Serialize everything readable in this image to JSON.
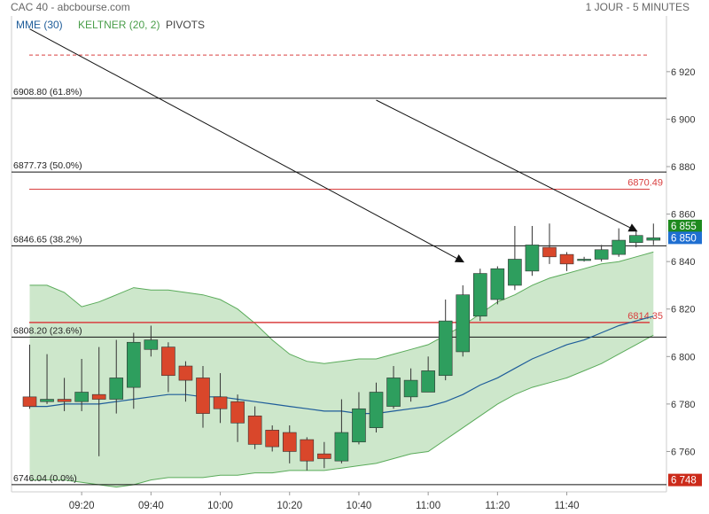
{
  "header": {
    "title": "CAC 40 - abcbourse.com",
    "timeframe": "1 JOUR - 5 MINUTES"
  },
  "indicators": {
    "mme": "MME (30)",
    "keltner": "KELTNER (20, 2)",
    "pivots": "PIVOTS"
  },
  "colors": {
    "up": "#2e9e5e",
    "down": "#d9472b",
    "mme": "#1f5d9a",
    "keltner_line": "#5aab5a",
    "keltner_fill": "#c4e3c2",
    "pivot": "#d94040",
    "fib": "#111111",
    "badge_green": "#1e8a1e",
    "badge_blue": "#1f6fd1",
    "badge_dark": "#cc2a1a"
  },
  "chart_data": {
    "type": "candlestick",
    "ylim": [
      6743,
      6936
    ],
    "y_ticks": [
      "6 760",
      "6 780",
      "6 800",
      "6 820",
      "6 840",
      "6 860",
      "6 880",
      "6 900",
      "6 920"
    ],
    "x_ticks": [
      "09:20",
      "09:40",
      "10:00",
      "10:20",
      "10:40",
      "11:00",
      "11:20",
      "11:40"
    ],
    "candles": [
      {
        "t": "09:05",
        "o": 6783,
        "h": 6805,
        "l": 6778,
        "c": 6779
      },
      {
        "t": "09:10",
        "o": 6781,
        "h": 6801,
        "l": 6780,
        "c": 6782
      },
      {
        "t": "09:15",
        "o": 6782,
        "h": 6791,
        "l": 6777,
        "c": 6781
      },
      {
        "t": "09:20",
        "o": 6781,
        "h": 6799,
        "l": 6777,
        "c": 6785
      },
      {
        "t": "09:25",
        "o": 6784,
        "h": 6804,
        "l": 6758,
        "c": 6782
      },
      {
        "t": "09:30",
        "o": 6782,
        "h": 6807,
        "l": 6776,
        "c": 6791
      },
      {
        "t": "09:35",
        "o": 6787,
        "h": 6810,
        "l": 6778,
        "c": 6806
      },
      {
        "t": "09:40",
        "o": 6803,
        "h": 6813,
        "l": 6800,
        "c": 6807
      },
      {
        "t": "09:45",
        "o": 6804,
        "h": 6806,
        "l": 6785,
        "c": 6792
      },
      {
        "t": "09:50",
        "o": 6796,
        "h": 6798,
        "l": 6781,
        "c": 6790
      },
      {
        "t": "09:55",
        "o": 6791,
        "h": 6796,
        "l": 6770,
        "c": 6776
      },
      {
        "t": "10:00",
        "o": 6783,
        "h": 6793,
        "l": 6772,
        "c": 6778
      },
      {
        "t": "10:05",
        "o": 6781,
        "h": 6784,
        "l": 6764,
        "c": 6772
      },
      {
        "t": "10:10",
        "o": 6775,
        "h": 6779,
        "l": 6761,
        "c": 6763
      },
      {
        "t": "10:15",
        "o": 6769,
        "h": 6771,
        "l": 6760,
        "c": 6762
      },
      {
        "t": "10:20",
        "o": 6768,
        "h": 6771,
        "l": 6755,
        "c": 6760
      },
      {
        "t": "10:25",
        "o": 6765,
        "h": 6766,
        "l": 6752,
        "c": 6756
      },
      {
        "t": "10:30",
        "o": 6759,
        "h": 6764,
        "l": 6753,
        "c": 6757
      },
      {
        "t": "10:35",
        "o": 6756,
        "h": 6782,
        "l": 6755,
        "c": 6768
      },
      {
        "t": "10:40",
        "o": 6764,
        "h": 6785,
        "l": 6763,
        "c": 6778
      },
      {
        "t": "10:45",
        "o": 6770,
        "h": 6789,
        "l": 6768,
        "c": 6785
      },
      {
        "t": "10:50",
        "o": 6779,
        "h": 6796,
        "l": 6778,
        "c": 6791
      },
      {
        "t": "10:55",
        "o": 6783,
        "h": 6795,
        "l": 6781,
        "c": 6790
      },
      {
        "t": "11:00",
        "o": 6785,
        "h": 6800,
        "l": 6785,
        "c": 6794
      },
      {
        "t": "11:05",
        "o": 6792,
        "h": 6824,
        "l": 6790,
        "c": 6815
      },
      {
        "t": "11:10",
        "o": 6802,
        "h": 6830,
        "l": 6800,
        "c": 6826
      },
      {
        "t": "11:15",
        "o": 6817,
        "h": 6837,
        "l": 6815,
        "c": 6835
      },
      {
        "t": "11:20",
        "o": 6824,
        "h": 6838,
        "l": 6822,
        "c": 6837
      },
      {
        "t": "11:25",
        "o": 6830,
        "h": 6855,
        "l": 6828,
        "c": 6841
      },
      {
        "t": "11:30",
        "o": 6836,
        "h": 6855,
        "l": 6834,
        "c": 6847
      },
      {
        "t": "11:35",
        "o": 6846,
        "h": 6856,
        "l": 6839,
        "c": 6842
      },
      {
        "t": "11:40",
        "o": 6843,
        "h": 6844,
        "l": 6836,
        "c": 6839
      },
      {
        "t": "11:45",
        "o": 6841,
        "h": 6842,
        "l": 6840,
        "c": 6841
      },
      {
        "t": "11:50",
        "o": 6841,
        "h": 6847,
        "l": 6840,
        "c": 6845
      },
      {
        "t": "11:55",
        "o": 6843,
        "h": 6854,
        "l": 6842,
        "c": 6849
      },
      {
        "t": "12:00",
        "o": 6848,
        "h": 6853,
        "l": 6846,
        "c": 6851
      },
      {
        "t": "12:05",
        "o": 6849,
        "h": 6856,
        "l": 6847,
        "c": 6850
      }
    ],
    "mme": [
      6779,
      6779,
      6780,
      6780,
      6780,
      6781,
      6782,
      6783,
      6784,
      6784,
      6783,
      6783,
      6782,
      6781,
      6780,
      6779,
      6778,
      6777,
      6777,
      6776,
      6776,
      6777,
      6778,
      6779,
      6781,
      6784,
      6788,
      6791,
      6795,
      6799,
      6802,
      6805,
      6807,
      6810,
      6813,
      6815,
      6817
    ],
    "keltner_upper": [
      6830,
      6830,
      6827,
      6821,
      6823,
      6826,
      6829,
      6828,
      6828,
      6827,
      6826,
      6824,
      6820,
      6814,
      6807,
      6801,
      6798,
      6797,
      6798,
      6799,
      6799,
      6801,
      6803,
      6805,
      6809,
      6813,
      6818,
      6823,
      6826,
      6830,
      6833,
      6835,
      6837,
      6839,
      6840,
      6842,
      6844
    ],
    "keltner_lower": [
      6748,
      6748,
      6748,
      6747,
      6746,
      6745,
      6746,
      6748,
      6749,
      6749,
      6749,
      6750,
      6750,
      6751,
      6751,
      6752,
      6752,
      6752,
      6753,
      6754,
      6755,
      6757,
      6759,
      6760,
      6765,
      6770,
      6775,
      6780,
      6784,
      6787,
      6789,
      6791,
      6794,
      6797,
      6801,
      6805,
      6809
    ],
    "fibonacci": [
      {
        "value": 6908.8,
        "label": "6908.80  (61.8%)"
      },
      {
        "value": 6877.73,
        "label": "6877.73  (50.0%)"
      },
      {
        "value": 6846.65,
        "label": "6846.65  (38.2%)"
      },
      {
        "value": 6808.2,
        "label": "6808.20  (23.6%)"
      },
      {
        "value": 6746.04,
        "label": "6746.04  (0.0%)"
      }
    ],
    "pivots": [
      {
        "value": 6927,
        "label": ""
      },
      {
        "value": 6870.49,
        "label": "6870.49"
      },
      {
        "value": 6814.35,
        "label": "6814.35"
      }
    ],
    "trendlines": [
      {
        "from": [
          "09:05",
          6938
        ],
        "to": [
          "11:10",
          6840
        ]
      },
      {
        "from": [
          "10:45",
          6908
        ],
        "to": [
          "12:00",
          6853
        ]
      }
    ],
    "badges": [
      {
        "value": 6855,
        "label": "6 855",
        "kind": "green"
      },
      {
        "value": 6850,
        "label": "6 850",
        "kind": "blue"
      },
      {
        "value": 6748,
        "label": "6 748",
        "kind": "dark"
      }
    ]
  }
}
